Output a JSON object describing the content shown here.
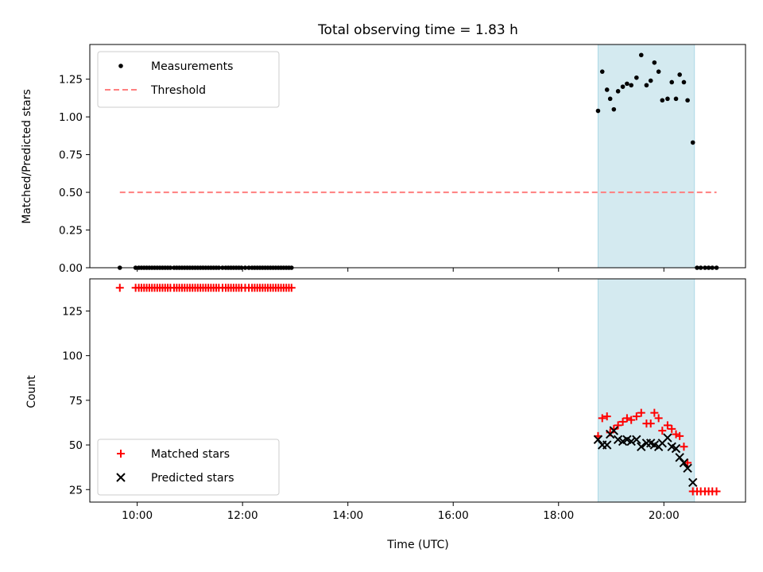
{
  "chart_data": {
    "title": "Total observing time = 1.83 h",
    "xlabel": "Time (UTC)",
    "x_tick_labels": [
      "10:00",
      "12:00",
      "14:00",
      "16:00",
      "18:00",
      "20:00"
    ],
    "x_ticks": [
      10,
      12,
      14,
      16,
      18,
      20
    ],
    "xlim": [
      9.1,
      21.55
    ],
    "highlight_span": [
      18.75,
      20.58
    ],
    "highlight_color": "#d4eaf0",
    "panels": [
      {
        "type": "scatter",
        "ylabel": "Matched/Predicted stars",
        "ylim": [
          0,
          1.48
        ],
        "y_ticks": [
          0.0,
          0.25,
          0.5,
          0.75,
          1.0,
          1.25
        ],
        "y_tick_labels": [
          "0.00",
          "0.25",
          "0.50",
          "0.75",
          "1.00",
          "1.25"
        ],
        "legend": {
          "placement": "upper left",
          "items": [
            "Measurements",
            "Threshold"
          ]
        },
        "series": [
          {
            "name": "Measurements",
            "color": "#000000",
            "marker": "dot",
            "points": [
              [
                9.67,
                0
              ],
              [
                9.97,
                0
              ],
              [
                10.03,
                0
              ],
              [
                10.08,
                0
              ],
              [
                10.13,
                0
              ],
              [
                10.18,
                0
              ],
              [
                10.23,
                0
              ],
              [
                10.28,
                0
              ],
              [
                10.33,
                0
              ],
              [
                10.38,
                0
              ],
              [
                10.43,
                0
              ],
              [
                10.48,
                0
              ],
              [
                10.53,
                0
              ],
              [
                10.58,
                0
              ],
              [
                10.63,
                0
              ],
              [
                10.7,
                0
              ],
              [
                10.75,
                0
              ],
              [
                10.8,
                0
              ],
              [
                10.85,
                0
              ],
              [
                10.9,
                0
              ],
              [
                10.95,
                0
              ],
              [
                11.0,
                0
              ],
              [
                11.05,
                0
              ],
              [
                11.1,
                0
              ],
              [
                11.15,
                0
              ],
              [
                11.2,
                0
              ],
              [
                11.25,
                0
              ],
              [
                11.3,
                0
              ],
              [
                11.35,
                0
              ],
              [
                11.4,
                0
              ],
              [
                11.45,
                0
              ],
              [
                11.5,
                0
              ],
              [
                11.55,
                0
              ],
              [
                11.62,
                0
              ],
              [
                11.68,
                0
              ],
              [
                11.73,
                0
              ],
              [
                11.78,
                0
              ],
              [
                11.83,
                0
              ],
              [
                11.88,
                0
              ],
              [
                11.93,
                0
              ],
              [
                11.98,
                0
              ],
              [
                12.05,
                0
              ],
              [
                12.12,
                0
              ],
              [
                12.18,
                0
              ],
              [
                12.23,
                0
              ],
              [
                12.28,
                0
              ],
              [
                12.33,
                0
              ],
              [
                12.38,
                0
              ],
              [
                12.43,
                0
              ],
              [
                12.48,
                0
              ],
              [
                12.53,
                0
              ],
              [
                12.58,
                0
              ],
              [
                12.63,
                0
              ],
              [
                12.68,
                0
              ],
              [
                12.73,
                0
              ],
              [
                12.78,
                0
              ],
              [
                12.83,
                0
              ],
              [
                12.88,
                0
              ],
              [
                12.93,
                0
              ],
              [
                18.75,
                1.04
              ],
              [
                18.83,
                1.3
              ],
              [
                18.92,
                1.18
              ],
              [
                18.98,
                1.12
              ],
              [
                19.05,
                1.05
              ],
              [
                19.13,
                1.17
              ],
              [
                19.22,
                1.2
              ],
              [
                19.3,
                1.22
              ],
              [
                19.38,
                1.21
              ],
              [
                19.48,
                1.26
              ],
              [
                19.57,
                1.41
              ],
              [
                19.67,
                1.21
              ],
              [
                19.75,
                1.24
              ],
              [
                19.82,
                1.36
              ],
              [
                19.9,
                1.3
              ],
              [
                19.97,
                1.11
              ],
              [
                20.07,
                1.12
              ],
              [
                20.15,
                1.23
              ],
              [
                20.23,
                1.12
              ],
              [
                20.3,
                1.28
              ],
              [
                20.38,
                1.23
              ],
              [
                20.45,
                1.11
              ],
              [
                20.55,
                0.83
              ],
              [
                20.63,
                0
              ],
              [
                20.7,
                0
              ],
              [
                20.78,
                0
              ],
              [
                20.85,
                0
              ],
              [
                20.92,
                0
              ],
              [
                21.0,
                0
              ]
            ]
          },
          {
            "name": "Threshold",
            "color": "#ff7f7f",
            "style": "dashed",
            "x": [
              9.67,
              21.0
            ],
            "y": [
              0.5,
              0.5
            ]
          }
        ]
      },
      {
        "type": "scatter",
        "ylabel": "Count",
        "ylim": [
          18,
          143
        ],
        "y_ticks": [
          25,
          50,
          75,
          100,
          125
        ],
        "y_tick_labels": [
          "25",
          "50",
          "75",
          "100",
          "125"
        ],
        "legend": {
          "placement": "lower left",
          "items": [
            "Matched stars",
            "Predicted stars"
          ]
        },
        "series": [
          {
            "name": "Matched stars",
            "color": "#ff0000",
            "marker": "plus",
            "points": [
              [
                9.67,
                138
              ],
              [
                9.97,
                138
              ],
              [
                10.03,
                138
              ],
              [
                10.08,
                138
              ],
              [
                10.13,
                138
              ],
              [
                10.18,
                138
              ],
              [
                10.23,
                138
              ],
              [
                10.28,
                138
              ],
              [
                10.33,
                138
              ],
              [
                10.38,
                138
              ],
              [
                10.43,
                138
              ],
              [
                10.48,
                138
              ],
              [
                10.53,
                138
              ],
              [
                10.58,
                138
              ],
              [
                10.63,
                138
              ],
              [
                10.7,
                138
              ],
              [
                10.75,
                138
              ],
              [
                10.8,
                138
              ],
              [
                10.85,
                138
              ],
              [
                10.9,
                138
              ],
              [
                10.95,
                138
              ],
              [
                11.0,
                138
              ],
              [
                11.05,
                138
              ],
              [
                11.1,
                138
              ],
              [
                11.15,
                138
              ],
              [
                11.2,
                138
              ],
              [
                11.25,
                138
              ],
              [
                11.3,
                138
              ],
              [
                11.35,
                138
              ],
              [
                11.4,
                138
              ],
              [
                11.45,
                138
              ],
              [
                11.5,
                138
              ],
              [
                11.55,
                138
              ],
              [
                11.62,
                138
              ],
              [
                11.68,
                138
              ],
              [
                11.73,
                138
              ],
              [
                11.78,
                138
              ],
              [
                11.83,
                138
              ],
              [
                11.88,
                138
              ],
              [
                11.93,
                138
              ],
              [
                11.98,
                138
              ],
              [
                12.05,
                138
              ],
              [
                12.12,
                138
              ],
              [
                12.18,
                138
              ],
              [
                12.23,
                138
              ],
              [
                12.28,
                138
              ],
              [
                12.33,
                138
              ],
              [
                12.38,
                138
              ],
              [
                12.43,
                138
              ],
              [
                12.48,
                138
              ],
              [
                12.53,
                138
              ],
              [
                12.58,
                138
              ],
              [
                12.63,
                138
              ],
              [
                12.68,
                138
              ],
              [
                12.73,
                138
              ],
              [
                12.78,
                138
              ],
              [
                12.83,
                138
              ],
              [
                12.88,
                138
              ],
              [
                12.93,
                138
              ],
              [
                18.75,
                55
              ],
              [
                18.83,
                65
              ],
              [
                18.92,
                66
              ],
              [
                18.98,
                57
              ],
              [
                19.05,
                59
              ],
              [
                19.13,
                61
              ],
              [
                19.22,
                63
              ],
              [
                19.3,
                65
              ],
              [
                19.38,
                64
              ],
              [
                19.48,
                66
              ],
              [
                19.57,
                68
              ],
              [
                19.67,
                62
              ],
              [
                19.75,
                62
              ],
              [
                19.82,
                68
              ],
              [
                19.9,
                65
              ],
              [
                19.97,
                58
              ],
              [
                20.07,
                61
              ],
              [
                20.15,
                59
              ],
              [
                20.23,
                56
              ],
              [
                20.3,
                55
              ],
              [
                20.38,
                49
              ],
              [
                20.45,
                40
              ],
              [
                20.55,
                24
              ],
              [
                20.63,
                24
              ],
              [
                20.7,
                24
              ],
              [
                20.78,
                24
              ],
              [
                20.85,
                24
              ],
              [
                20.92,
                24
              ],
              [
                21.0,
                24
              ]
            ]
          },
          {
            "name": "Predicted stars",
            "color": "#000000",
            "marker": "x",
            "points": [
              [
                18.75,
                53
              ],
              [
                18.83,
                50
              ],
              [
                18.92,
                50
              ],
              [
                18.98,
                56
              ],
              [
                19.05,
                58
              ],
              [
                19.13,
                53
              ],
              [
                19.22,
                52
              ],
              [
                19.3,
                53
              ],
              [
                19.38,
                52
              ],
              [
                19.48,
                53
              ],
              [
                19.57,
                49
              ],
              [
                19.67,
                51
              ],
              [
                19.75,
                51
              ],
              [
                19.82,
                50
              ],
              [
                19.9,
                49
              ],
              [
                19.97,
                51
              ],
              [
                20.07,
                54
              ],
              [
                20.15,
                49
              ],
              [
                20.23,
                48
              ],
              [
                20.3,
                43
              ],
              [
                20.38,
                40
              ],
              [
                20.45,
                37
              ],
              [
                20.55,
                29
              ]
            ]
          }
        ]
      }
    ]
  }
}
